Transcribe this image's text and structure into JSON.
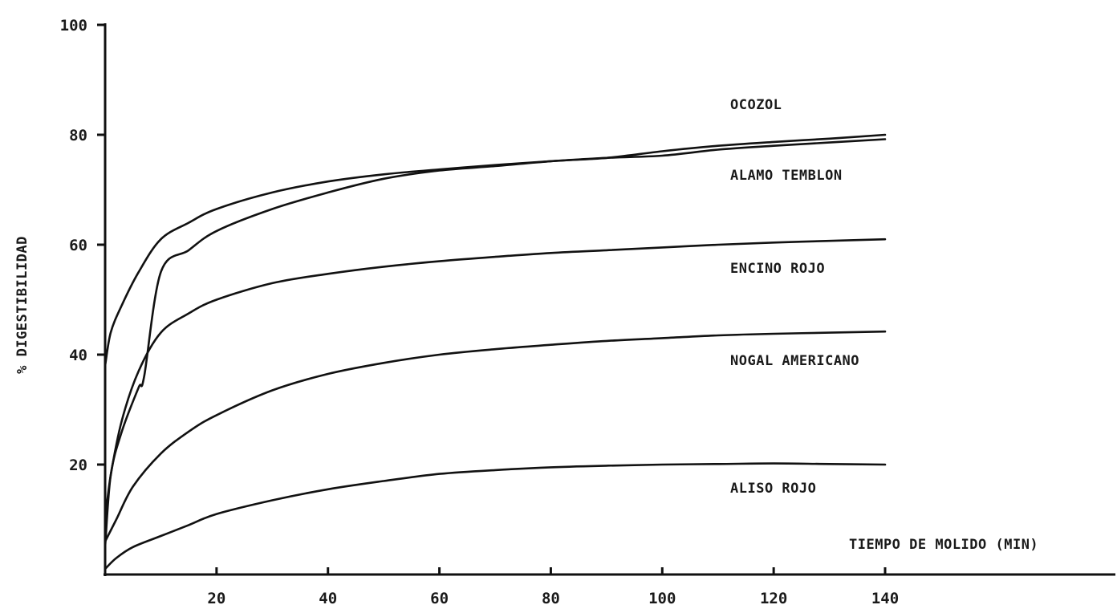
{
  "chart_data": {
    "type": "line",
    "title": "",
    "xlabel": "TIEMPO DE MOLIDO (MIN)",
    "ylabel": "% DIGESTIBILIDAD",
    "xlim": [
      0,
      140
    ],
    "ylim": [
      0,
      100
    ],
    "x_ticks": [
      20,
      40,
      60,
      80,
      100,
      120,
      140
    ],
    "x_tick_labels": [
      "20",
      "40",
      "60",
      "80",
      "100",
      "120",
      "140"
    ],
    "y_ticks": [
      20,
      40,
      60,
      80,
      100
    ],
    "y_tick_labels": [
      "20",
      "40",
      "60",
      "80",
      "100"
    ],
    "grid": false,
    "legend": "labels at right end of each curve",
    "series": [
      {
        "name": "OCOZOL",
        "x": [
          0,
          1,
          3,
          6,
          10,
          15,
          20,
          30,
          40,
          50,
          60,
          70,
          80,
          90,
          100,
          110,
          120,
          130,
          140
        ],
        "y": [
          38,
          44,
          49,
          55,
          61,
          64,
          66.5,
          69.5,
          71.5,
          72.8,
          73.7,
          74.5,
          75.2,
          75.8,
          76.2,
          77.3,
          78,
          78.6,
          79.2
        ]
      },
      {
        "name": "ALAMO TEMBLON",
        "x": [
          0,
          1,
          3,
          6,
          7,
          10,
          15,
          20,
          30,
          40,
          50,
          60,
          70,
          80,
          90,
          100,
          110,
          120,
          130,
          140
        ],
        "y": [
          5,
          18,
          26,
          34,
          36,
          55,
          59,
          62.5,
          66.5,
          69.5,
          72,
          73.5,
          74.3,
          75.2,
          75.8,
          77,
          78,
          78.7,
          79.3,
          80
        ]
      },
      {
        "name": "ENCINO ROJO",
        "x": [
          0,
          1,
          3,
          6,
          10,
          15,
          20,
          30,
          40,
          50,
          60,
          70,
          80,
          90,
          100,
          110,
          120,
          130,
          140
        ],
        "y": [
          10,
          18,
          28,
          37,
          44,
          47.5,
          50,
          53,
          54.7,
          56,
          57,
          57.8,
          58.5,
          59,
          59.5,
          60,
          60.4,
          60.7,
          61
        ]
      },
      {
        "name": "NOGAL AMERICANO",
        "x": [
          0,
          2,
          5,
          10,
          15,
          20,
          30,
          40,
          50,
          60,
          70,
          80,
          90,
          100,
          110,
          120,
          130,
          140
        ],
        "y": [
          6,
          10,
          16,
          22,
          26,
          29,
          33.5,
          36.5,
          38.5,
          40,
          41,
          41.8,
          42.5,
          43,
          43.5,
          43.8,
          44,
          44.2
        ]
      },
      {
        "name": "ALISO ROJO",
        "x": [
          0,
          2,
          5,
          10,
          15,
          20,
          30,
          40,
          50,
          60,
          70,
          80,
          90,
          100,
          110,
          120,
          130,
          140
        ],
        "y": [
          1,
          3,
          5,
          7,
          9,
          11,
          13.5,
          15.5,
          17,
          18.3,
          19,
          19.5,
          19.8,
          20,
          20.1,
          20.2,
          20.1,
          20
        ]
      }
    ]
  }
}
